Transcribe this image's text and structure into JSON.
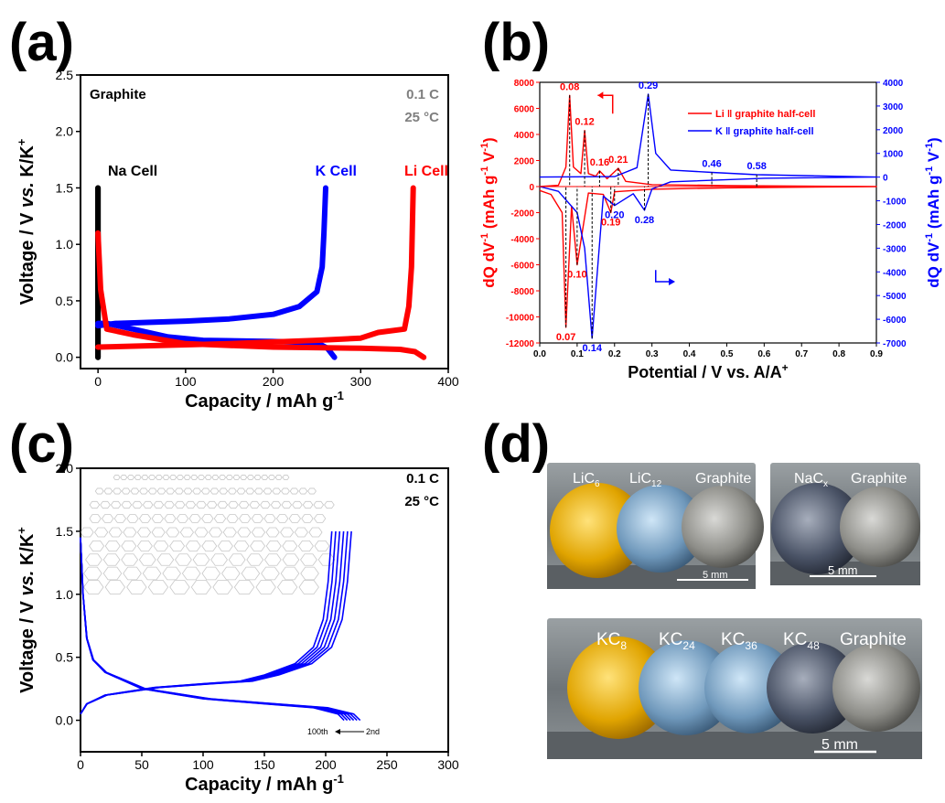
{
  "panels": {
    "a": "(a)",
    "b": "(b)",
    "c": "(c)",
    "d": "(d)"
  },
  "chart_data": [
    {
      "id": "a",
      "type": "line",
      "title": "",
      "xlabel": "Capacity / mAh g",
      "xlabel_sup": "-1",
      "ylabel_parts": [
        "Voltage / V ",
        "vs.",
        " K/K"
      ],
      "ylabel_sup": "+",
      "xlim": [
        -20,
        400
      ],
      "ylim": [
        -0.1,
        2.5
      ],
      "xticks": [
        "0",
        "100",
        "200",
        "300",
        "400"
      ],
      "yticks": [
        "0.0",
        "0.5",
        "1.0",
        "1.5",
        "2.0",
        "2.5"
      ],
      "annotations": {
        "material": "Graphite",
        "rate": "0.1 C",
        "temp": "25 °C"
      },
      "series": [
        {
          "name": "Na Cell",
          "color": "#000000",
          "charge": [
            [
              0,
              0
            ],
            [
              0,
              1.5
            ]
          ],
          "discharge": [
            [
              0,
              1.5
            ],
            [
              0,
              0
            ]
          ]
        },
        {
          "name": "K Cell",
          "color": "#0000FF",
          "charge": [
            [
              0,
              0.28
            ],
            [
              20,
              0.3
            ],
            [
              100,
              0.32
            ],
            [
              150,
              0.34
            ],
            [
              200,
              0.38
            ],
            [
              230,
              0.45
            ],
            [
              250,
              0.58
            ],
            [
              256,
              0.8
            ],
            [
              258,
              1.1
            ],
            [
              260,
              1.5
            ]
          ],
          "discharge": [
            [
              0,
              0.3
            ],
            [
              10,
              0.3
            ],
            [
              40,
              0.25
            ],
            [
              80,
              0.18
            ],
            [
              120,
              0.15
            ],
            [
              200,
              0.14
            ],
            [
              250,
              0.13
            ],
            [
              262,
              0.08
            ],
            [
              270,
              0.0
            ]
          ]
        },
        {
          "name": "Li Cell",
          "color": "#FF0000",
          "charge": [
            [
              0,
              0.09
            ],
            [
              50,
              0.1
            ],
            [
              150,
              0.12
            ],
            [
              250,
              0.15
            ],
            [
              300,
              0.17
            ],
            [
              320,
              0.22
            ],
            [
              350,
              0.25
            ],
            [
              355,
              0.45
            ],
            [
              358,
              0.8
            ],
            [
              360,
              1.5
            ]
          ],
          "discharge": [
            [
              0,
              1.1
            ],
            [
              3,
              0.6
            ],
            [
              10,
              0.25
            ],
            [
              40,
              0.2
            ],
            [
              100,
              0.12
            ],
            [
              200,
              0.09
            ],
            [
              300,
              0.08
            ],
            [
              345,
              0.07
            ],
            [
              362,
              0.05
            ],
            [
              372,
              0.0
            ]
          ]
        }
      ]
    },
    {
      "id": "b",
      "type": "line",
      "xlabel": "Potential / V vs. A/A",
      "xlabel_sup": "+",
      "ylabel_left_main": "dQ dV",
      "ylabel_left_sup1": "-1",
      "ylabel_left_mid": " (mAh g",
      "ylabel_left_sup2": "-1",
      "ylabel_left_mid2": " V",
      "ylabel_left_sup3": "-1",
      "ylabel_left_end": ")",
      "xlim": [
        0,
        0.9
      ],
      "ylim_left": [
        -12000,
        8000
      ],
      "ylim_right": [
        -7000,
        4000
      ],
      "xticks": [
        "0.0",
        "0.1",
        "0.2",
        "0.3",
        "0.4",
        "0.5",
        "0.6",
        "0.7",
        "0.8",
        "0.9"
      ],
      "yticks_left": [
        "-12000",
        "-10000",
        "-8000",
        "-6000",
        "-4000",
        "-2000",
        "0",
        "2000",
        "4000",
        "6000",
        "8000"
      ],
      "yticks_right": [
        "-7000",
        "-6000",
        "-5000",
        "-4000",
        "-3000",
        "-2000",
        "-1000",
        "0",
        "1000",
        "2000",
        "3000",
        "4000"
      ],
      "legend": [
        "Li ǁ graphite half-cell",
        "K ǁ graphite half-cell"
      ],
      "series": [
        {
          "name": "Li ǁ graphite half-cell",
          "color": "#FF0000",
          "axis": "left",
          "points": [
            [
              0.0,
              0
            ],
            [
              0.05,
              100
            ],
            [
              0.07,
              1500
            ],
            [
              0.08,
              7000
            ],
            [
              0.09,
              1500
            ],
            [
              0.11,
              1000
            ],
            [
              0.12,
              4300
            ],
            [
              0.13,
              1000
            ],
            [
              0.15,
              800
            ],
            [
              0.16,
              1200
            ],
            [
              0.18,
              600
            ],
            [
              0.21,
              1400
            ],
            [
              0.23,
              400
            ],
            [
              0.3,
              150
            ],
            [
              0.5,
              80
            ],
            [
              0.9,
              0
            ],
            [
              0.9,
              0
            ],
            [
              0.5,
              -100
            ],
            [
              0.3,
              -200
            ],
            [
              0.2,
              -400
            ],
            [
              0.19,
              -2000
            ],
            [
              0.17,
              -600
            ],
            [
              0.13,
              -500
            ],
            [
              0.1,
              -6000
            ],
            [
              0.085,
              -1500
            ],
            [
              0.07,
              -10800
            ],
            [
              0.06,
              -2000
            ],
            [
              0.03,
              -600
            ],
            [
              0.0,
              -300
            ]
          ]
        },
        {
          "name": "K ǁ graphite half-cell",
          "color": "#0000FF",
          "axis": "right",
          "points": [
            [
              0.0,
              0
            ],
            [
              0.2,
              20
            ],
            [
              0.26,
              400
            ],
            [
              0.29,
              3500
            ],
            [
              0.31,
              1000
            ],
            [
              0.35,
              300
            ],
            [
              0.46,
              200
            ],
            [
              0.58,
              100
            ],
            [
              0.9,
              0
            ],
            [
              0.9,
              0
            ],
            [
              0.6,
              -50
            ],
            [
              0.35,
              -200
            ],
            [
              0.3,
              -500
            ],
            [
              0.28,
              -1400
            ],
            [
              0.25,
              -700
            ],
            [
              0.2,
              -1200
            ],
            [
              0.17,
              -800
            ],
            [
              0.14,
              -6800
            ],
            [
              0.12,
              -3000
            ],
            [
              0.1,
              -1500
            ],
            [
              0.05,
              -600
            ],
            [
              0.0,
              -400
            ]
          ]
        }
      ],
      "labels": [
        {
          "text": "0.08",
          "x": 0.08,
          "y": 7000,
          "color": "#FF0000",
          "axis": "left",
          "pos": "above"
        },
        {
          "text": "0.12",
          "x": 0.12,
          "y": 4300,
          "color": "#FF0000",
          "axis": "left",
          "pos": "above"
        },
        {
          "text": "0.16",
          "x": 0.16,
          "y": 1200,
          "color": "#FF0000",
          "axis": "left",
          "pos": "above"
        },
        {
          "text": "0.21",
          "x": 0.21,
          "y": 1400,
          "color": "#FF0000",
          "axis": "left",
          "pos": "above"
        },
        {
          "text": "0.19",
          "x": 0.19,
          "y": -2000,
          "color": "#FF0000",
          "axis": "left",
          "pos": "below"
        },
        {
          "text": "0.10",
          "x": 0.1,
          "y": -6000,
          "color": "#FF0000",
          "axis": "left",
          "pos": "below"
        },
        {
          "text": "0.07",
          "x": 0.07,
          "y": -10800,
          "color": "#FF0000",
          "axis": "left",
          "pos": "below"
        },
        {
          "text": "0.29",
          "x": 0.29,
          "y": 3500,
          "color": "#0000FF",
          "axis": "right",
          "pos": "above"
        },
        {
          "text": "0.46",
          "x": 0.46,
          "y": 200,
          "color": "#0000FF",
          "axis": "right",
          "pos": "above"
        },
        {
          "text": "0.58",
          "x": 0.58,
          "y": 100,
          "color": "#0000FF",
          "axis": "right",
          "pos": "above"
        },
        {
          "text": "0.20",
          "x": 0.2,
          "y": -1200,
          "color": "#0000FF",
          "axis": "right",
          "pos": "below"
        },
        {
          "text": "0.28",
          "x": 0.28,
          "y": -1400,
          "color": "#0000FF",
          "axis": "right",
          "pos": "below"
        },
        {
          "text": "0.14",
          "x": 0.14,
          "y": -6800,
          "color": "#0000FF",
          "axis": "right",
          "pos": "below"
        }
      ]
    },
    {
      "id": "c",
      "type": "line",
      "xlabel": "Capacity / mAh g",
      "xlabel_sup": "-1",
      "ylabel_parts": [
        "Voltage / V ",
        "vs.",
        " K/K"
      ],
      "ylabel_sup": "+",
      "xlim": [
        0,
        300
      ],
      "ylim": [
        -0.25,
        2.0
      ],
      "xticks": [
        "0",
        "50",
        "100",
        "150",
        "200",
        "250",
        "300"
      ],
      "yticks": [
        "0.0",
        "0.5",
        "1.0",
        "1.5",
        "2.0"
      ],
      "annotations": {
        "rate": "0.1 C",
        "temp": "25 °C",
        "cycles_from": "100th",
        "cycles_to": "2nd"
      },
      "series": [
        {
          "name": "charge",
          "color": "#0000FF",
          "cycles": 6,
          "points": [
            [
              0,
              0.05
            ],
            [
              5,
              0.13
            ],
            [
              20,
              0.2
            ],
            [
              60,
              0.26
            ],
            [
              100,
              0.29
            ],
            [
              130,
              0.31
            ],
            [
              150,
              0.36
            ],
            [
              175,
              0.45
            ],
            [
              190,
              0.58
            ],
            [
              198,
              0.8
            ],
            [
              202,
              1.1
            ],
            [
              205,
              1.5
            ]
          ]
        },
        {
          "name": "discharge",
          "color": "#0000FF",
          "cycles": 6,
          "points": [
            [
              0,
              1.45
            ],
            [
              2,
              1.0
            ],
            [
              5,
              0.65
            ],
            [
              10,
              0.48
            ],
            [
              20,
              0.38
            ],
            [
              50,
              0.25
            ],
            [
              100,
              0.17
            ],
            [
              150,
              0.13
            ],
            [
              190,
              0.1
            ],
            [
              210,
              0.05
            ],
            [
              215,
              0.0
            ]
          ]
        }
      ]
    }
  ],
  "photos": {
    "top_left": [
      "LiC",
      "6",
      "LiC",
      "12",
      "Graphite"
    ],
    "top_right": [
      "NaC",
      "x",
      "Graphite"
    ],
    "bottom": [
      "KC",
      "8",
      "KC",
      "24",
      "KC",
      "36",
      "KC",
      "48",
      "Graphite"
    ],
    "scale": "5 mm"
  }
}
